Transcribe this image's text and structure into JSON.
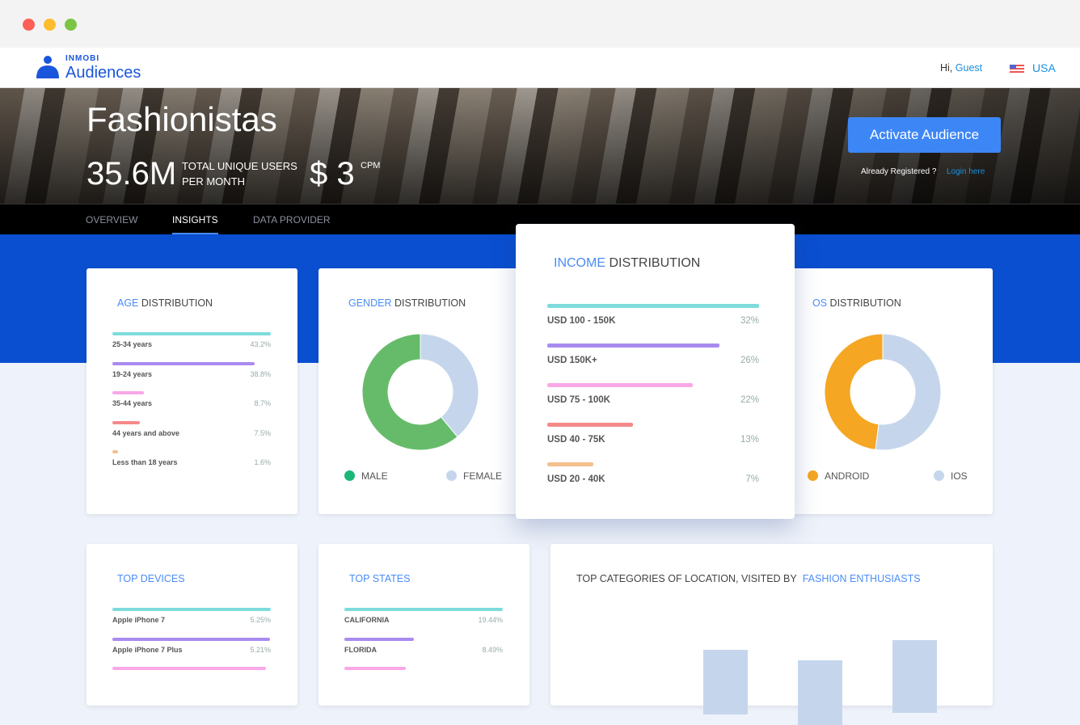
{
  "brand": {
    "company": "INMOBI",
    "product": "Audiences"
  },
  "header": {
    "greeting": "Hi,",
    "user": "Guest",
    "country": "USA",
    "flag_icon": "us-flag-icon"
  },
  "hero": {
    "title": "Fashionistas",
    "users": "35.6M",
    "users_label_1": "TOTAL UNIQUE USERS",
    "users_label_2": "PER MONTH",
    "cpm": "$ 3",
    "cpm_label": "CPM",
    "activate_label": "Activate Audience",
    "registered_text": "Already Registered ?",
    "login_label": "Login here"
  },
  "tabs": [
    {
      "label": "OVERVIEW"
    },
    {
      "label": "INSIGHTS",
      "active": true
    },
    {
      "label": "DATA PROVIDER"
    }
  ],
  "colors": {
    "accent": "#4a8cf7",
    "band": "#0a4fd0",
    "male": "#66bb6a",
    "female": "#c5d6ec",
    "android": "#f5a623",
    "ios": "#c5d6ec",
    "button": "#3d86f5"
  },
  "age": {
    "title_hl": "AGE",
    "title": "DISTRIBUTION",
    "rows": [
      {
        "label": "25-34 years",
        "value": "43.2%",
        "pct": 43.2,
        "color": "#7fdbdb"
      },
      {
        "label": "19-24 years",
        "value": "38.8%",
        "pct": 38.8,
        "color": "#a98bf0"
      },
      {
        "label": "35-44 years",
        "value": "8.7%",
        "pct": 8.7,
        "color": "#f9a8e8"
      },
      {
        "label": "44 years and above",
        "value": "7.5%",
        "pct": 7.5,
        "color": "#f58a8a"
      },
      {
        "label": "Less than 18 years",
        "value": "1.6%",
        "pct": 1.6,
        "color": "#f3c08e"
      }
    ]
  },
  "gender": {
    "title_hl": "GENDER",
    "title": "DISTRIBUTION",
    "male_label": "MALE",
    "female_label": "FEMALE",
    "male_pct": 61,
    "female_pct": 39
  },
  "income": {
    "title_hl": "INCOME",
    "title": "DISTRIBUTION",
    "rows": [
      {
        "label": "USD 100 - 150K",
        "value": "32%",
        "pct": 32,
        "color": "#7fdbdb"
      },
      {
        "label": "USD 150K+",
        "value": "26%",
        "pct": 26,
        "color": "#a98bf0"
      },
      {
        "label": "USD 75 - 100K",
        "value": "22%",
        "pct": 22,
        "color": "#f9a8e8"
      },
      {
        "label": "USD 40 - 75K",
        "value": "13%",
        "pct": 13,
        "color": "#f58a8a"
      },
      {
        "label": "USD 20 - 40K",
        "value": "7%",
        "pct": 7,
        "color": "#f3c08e"
      }
    ]
  },
  "os": {
    "title_hl": "OS",
    "title": "DISTRIBUTION",
    "android_label": "ANDROID",
    "ios_label": "IOS",
    "android_pct": 48,
    "ios_pct": 52
  },
  "devices": {
    "title": "TOP DEVICES",
    "rows": [
      {
        "label": "Apple iPhone 7",
        "value": "5.25%",
        "pct": 5.25,
        "color": "#7fdbdb"
      },
      {
        "label": "Apple iPhone 7 Plus",
        "value": "5.21%",
        "pct": 5.21,
        "color": "#a98bf0"
      },
      {
        "color": "#f9a8e8",
        "pct": 5.1
      }
    ]
  },
  "states": {
    "title": "TOP STATES",
    "rows": [
      {
        "label": "CALIFORNIA",
        "value": "19.44%",
        "pct": 19.44,
        "color": "#7fdbdb"
      },
      {
        "label": "FLORIDA",
        "value": "8.49%",
        "pct": 8.49,
        "color": "#a98bf0"
      },
      {
        "color": "#f9a8e8",
        "pct": 7.5
      }
    ]
  },
  "locations": {
    "title": "TOP CATEGORIES OF LOCATION, VISITED BY",
    "title_hl": "FASHION ENTHUSIASTS"
  }
}
